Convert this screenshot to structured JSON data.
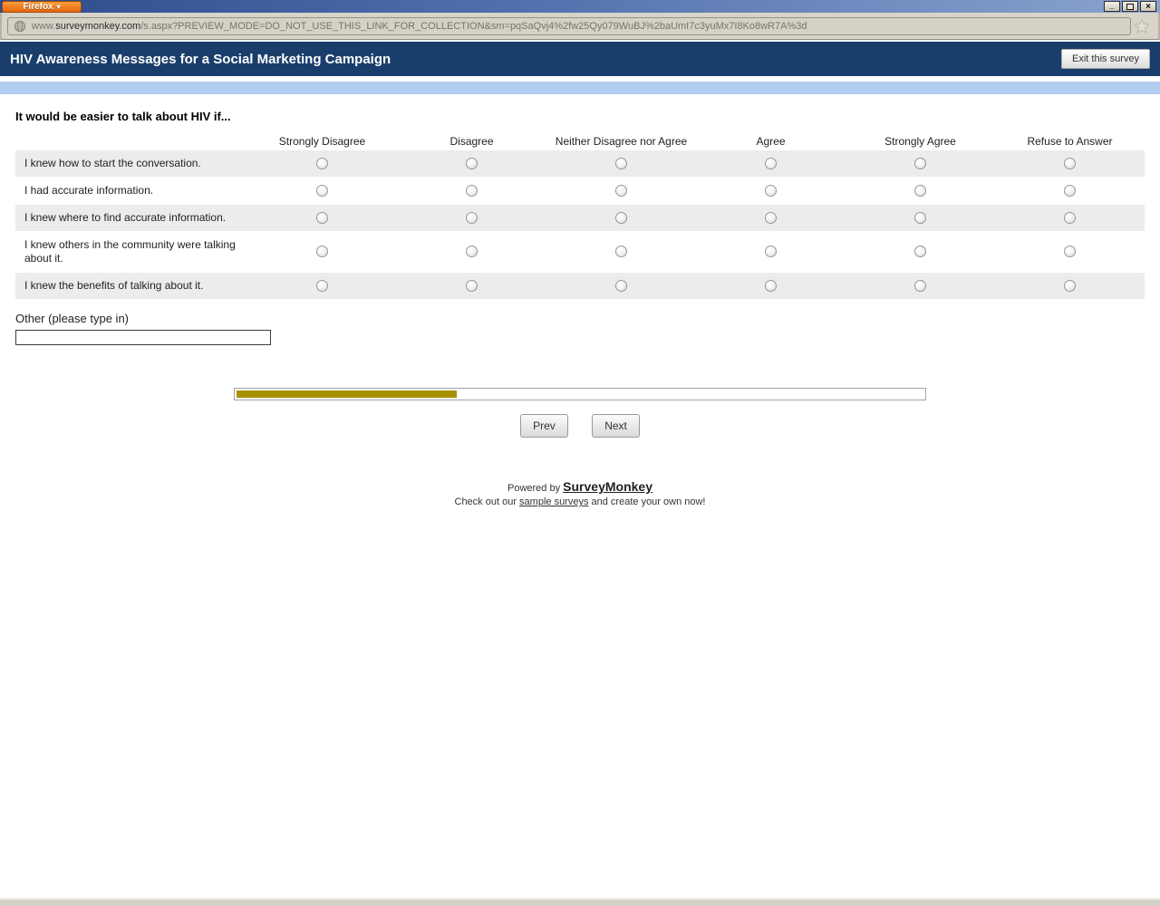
{
  "browser": {
    "firefox_button": "Firefox",
    "firefox_arrow": "▾",
    "url_prefix": "www.",
    "url_domain": "surveymonkey.com",
    "url_path": "/s.aspx?PREVIEW_MODE=DO_NOT_USE_THIS_LINK_FOR_COLLECTION&sm=pqSaQvj4%2fw25Qy079WuBJ%2baUmI7c3yuMx7I8Ko8wR7A%3d",
    "window_controls": {
      "minimize": "_",
      "close": "×"
    }
  },
  "survey": {
    "title": "HIV Awareness Messages for a Social Marketing Campaign",
    "exit_button": "Exit this survey",
    "question": "It would be easier to talk about HIV if...",
    "matrix": {
      "columns": [
        "Strongly Disagree",
        "Disagree",
        "Neither Disagree nor Agree",
        "Agree",
        "Strongly Agree",
        "Refuse to Answer"
      ],
      "rows": [
        "I knew how to start the conversation.",
        "I had accurate information.",
        "I knew where to find accurate information.",
        "I knew others in the community were talking about it.",
        "I knew the benefits of talking about it."
      ]
    },
    "other_label": "Other (please type in)",
    "other_value": "",
    "progress_percent": 32,
    "prev_button": "Prev",
    "next_button": "Next"
  },
  "footer": {
    "powered_by": "Powered by ",
    "brand": "SurveyMonkey",
    "tagline_prefix": "Check out our ",
    "tagline_link": "sample surveys",
    "tagline_suffix": " and create your own now!"
  },
  "colors": {
    "header_navy": "#193e6b",
    "subheader_blue": "#b2cdf0",
    "progress_fill": "#a89100",
    "row_shaded": "#ececec",
    "firefox_orange": "#e8680d"
  }
}
